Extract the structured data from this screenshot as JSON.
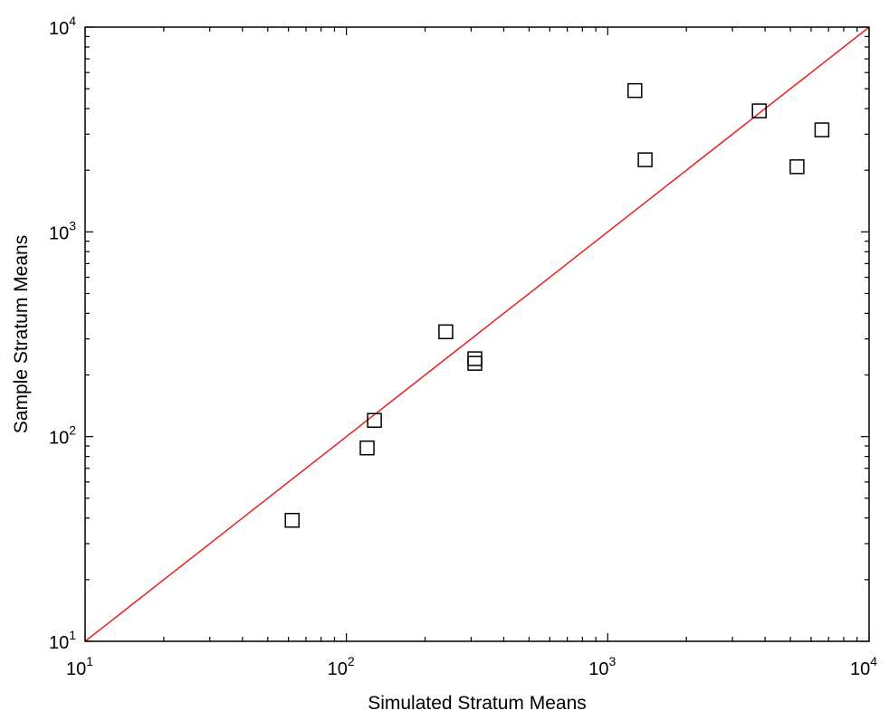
{
  "chart_data": {
    "type": "scatter",
    "title": "",
    "xlabel": "Simulated Stratum Means",
    "ylabel": "Sample Stratum Means",
    "x_scale": "log",
    "y_scale": "log",
    "xlim": [
      10,
      10000
    ],
    "ylim": [
      10,
      10000
    ],
    "x_ticks": [
      {
        "value": 10,
        "base": "10",
        "exp": "1"
      },
      {
        "value": 100,
        "base": "10",
        "exp": "2"
      },
      {
        "value": 1000,
        "base": "10",
        "exp": "3"
      },
      {
        "value": 10000,
        "base": "10",
        "exp": "4"
      }
    ],
    "y_ticks": [
      {
        "value": 10,
        "base": "10",
        "exp": "1"
      },
      {
        "value": 100,
        "base": "10",
        "exp": "2"
      },
      {
        "value": 1000,
        "base": "10",
        "exp": "3"
      },
      {
        "value": 10000,
        "base": "10",
        "exp": "4"
      }
    ],
    "grid": false,
    "marker": "square",
    "marker_color": "#000000",
    "line_color": "#e8201c",
    "reference_line": {
      "x": [
        10,
        10000
      ],
      "y": [
        10,
        10000
      ]
    },
    "points": [
      {
        "x": 62,
        "y": 39
      },
      {
        "x": 120,
        "y": 88
      },
      {
        "x": 128,
        "y": 120
      },
      {
        "x": 240,
        "y": 325
      },
      {
        "x": 310,
        "y": 240
      },
      {
        "x": 310,
        "y": 228
      },
      {
        "x": 1270,
        "y": 4900
      },
      {
        "x": 1390,
        "y": 2250
      },
      {
        "x": 3800,
        "y": 3900
      },
      {
        "x": 5300,
        "y": 2080
      },
      {
        "x": 6600,
        "y": 3150
      }
    ]
  }
}
